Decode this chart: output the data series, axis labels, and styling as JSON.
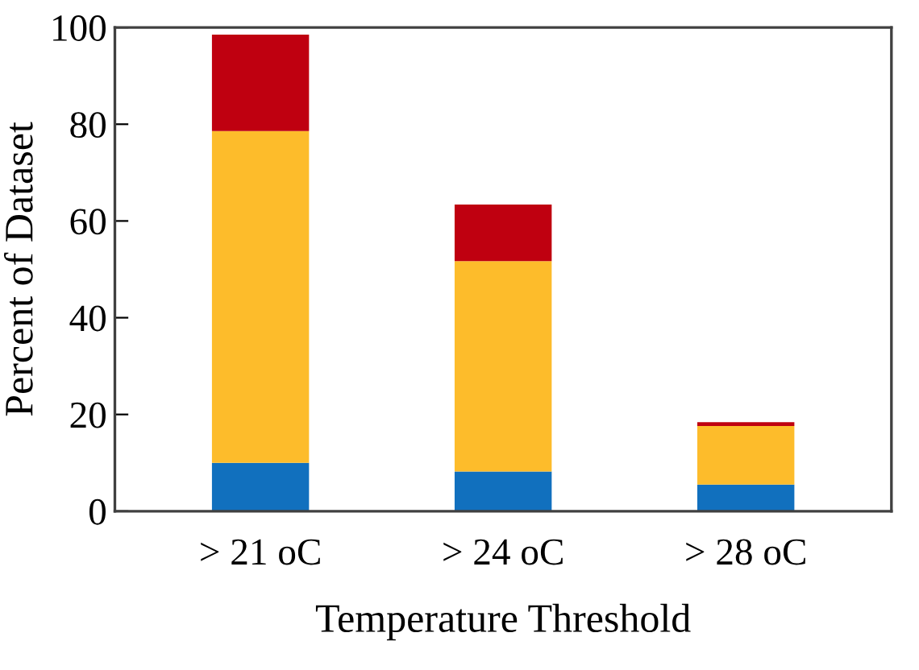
{
  "chart_data": {
    "type": "bar",
    "stacked": true,
    "xlabel": "Temperature Threshold",
    "ylabel": "Percent of Dataset",
    "categories": [
      "> 21 oC",
      "> 24 oC",
      "> 28 oC"
    ],
    "series": [
      {
        "color": "#1170be",
        "values": [
          10,
          8.2,
          5.5
        ]
      },
      {
        "color": "#fdbc2b",
        "values": [
          68.6,
          43.5,
          12.1
        ]
      },
      {
        "color": "#bf0010",
        "values": [
          19.9,
          11.7,
          0.8
        ]
      }
    ],
    "ylim": [
      0,
      100
    ],
    "yticks": [
      0,
      20,
      40,
      60,
      80,
      100
    ],
    "grid": false,
    "legend": false
  }
}
